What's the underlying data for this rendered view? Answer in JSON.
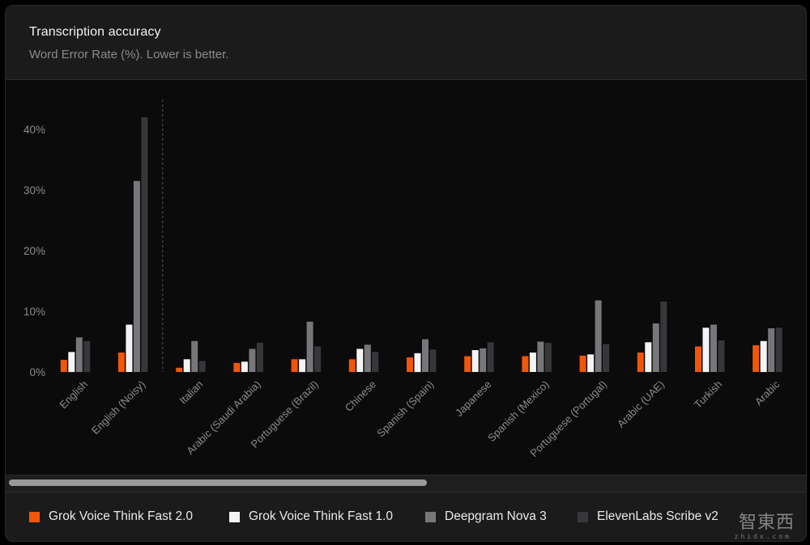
{
  "header": {
    "title": "Transcription accuracy",
    "subtitle": "Word Error Rate (%). Lower is better."
  },
  "colors": {
    "grok2": "#f2560a",
    "grok1": "#f4f4f4",
    "deepgram": "#77777b",
    "elevenlabs": "#37373b",
    "axis_text": "#8c8c8c",
    "divider": "#555555"
  },
  "chart_data": {
    "type": "bar",
    "title": "Transcription accuracy",
    "subtitle": "Word Error Rate (%). Lower is better.",
    "xlabel": "",
    "ylabel": "",
    "ylim": [
      0,
      45
    ],
    "yticks": [
      0,
      10,
      20,
      30,
      40
    ],
    "ytick_labels": [
      "0%",
      "10%",
      "20%",
      "30%",
      "40%"
    ],
    "grid": false,
    "legend_position": "bottom",
    "categories": [
      "English",
      "English (Noisy)",
      "Italian",
      "Arabic (Saudi Arabia)",
      "Portuguese (Brazil)",
      "Chinese",
      "Spanish (Spain)",
      "Japanese",
      "Spanish (Mexico)",
      "Portuguese (Portugal)",
      "Arabic (UAE)",
      "Turkish",
      "Arabic"
    ],
    "series": [
      {
        "name": "Grok Voice Think Fast 2.0",
        "color": "#f2560a",
        "values": [
          2.0,
          3.2,
          0.7,
          1.5,
          2.1,
          2.1,
          2.4,
          2.6,
          2.6,
          2.7,
          3.2,
          4.2,
          4.4
        ]
      },
      {
        "name": "Grok Voice Think Fast 1.0",
        "color": "#f4f4f4",
        "values": [
          3.3,
          7.8,
          2.1,
          1.7,
          2.1,
          3.8,
          3.1,
          3.6,
          3.2,
          2.9,
          4.9,
          7.3,
          5.1
        ]
      },
      {
        "name": "Deepgram Nova 3",
        "color": "#77777b",
        "values": [
          5.7,
          31.5,
          5.1,
          3.8,
          8.3,
          4.5,
          5.4,
          3.9,
          5.0,
          11.8,
          8.0,
          7.8,
          7.2
        ]
      },
      {
        "name": "ElevenLabs Scribe v2",
        "color": "#37373b",
        "values": [
          5.1,
          42.0,
          1.8,
          4.8,
          4.2,
          3.3,
          3.7,
          4.9,
          4.8,
          4.6,
          11.6,
          5.2,
          7.3
        ]
      }
    ]
  },
  "legend": {
    "items": [
      {
        "label": "Grok Voice Think Fast 2.0",
        "color": "#f2560a"
      },
      {
        "label": "Grok Voice Think Fast 1.0",
        "color": "#f4f4f4"
      },
      {
        "label": "Deepgram Nova 3",
        "color": "#77777b"
      },
      {
        "label": "ElevenLabs Scribe v2",
        "color": "#37373b"
      }
    ]
  },
  "watermark": {
    "text": "智東西",
    "sub": "zhidx.com"
  }
}
